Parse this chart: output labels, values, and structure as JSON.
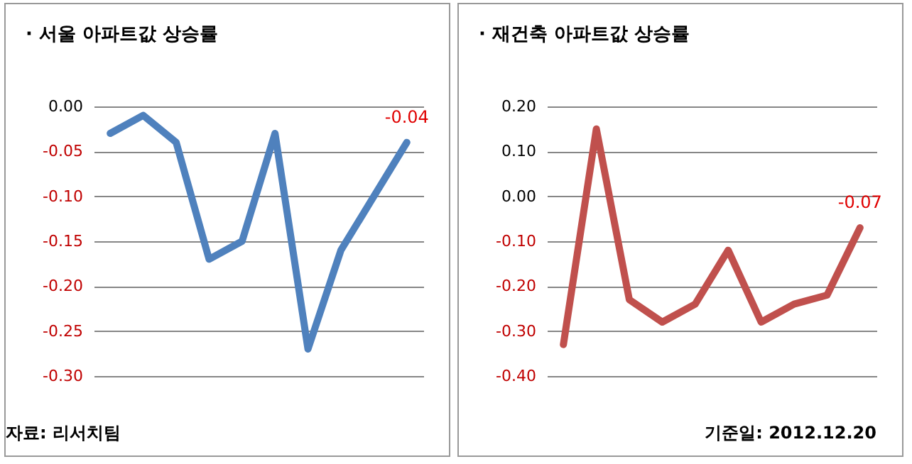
{
  "chart_data": [
    {
      "type": "line",
      "title": "· 서울 아파트값 상승률",
      "categories": [
        null,
        null,
        null,
        null,
        null,
        null,
        null,
        null,
        null,
        null
      ],
      "series": [
        {
          "color": "#4f81bd",
          "values": [
            -0.03,
            -0.01,
            -0.04,
            -0.17,
            -0.15,
            -0.03,
            -0.27,
            -0.16,
            -0.1,
            -0.04
          ],
          "value_labels": [
            null,
            null,
            null,
            null,
            null,
            null,
            null,
            null,
            null,
            "-0.04"
          ]
        }
      ],
      "ylim": [
        -0.3,
        0.0
      ],
      "yticks": [
        {
          "value": 0,
          "label": "0.00"
        },
        {
          "value": -0.05,
          "label": "-0.05"
        },
        {
          "value": -0.1,
          "label": "-0.10"
        },
        {
          "value": -0.15,
          "label": "-0.15"
        },
        {
          "value": -0.2,
          "label": "-0.20"
        },
        {
          "value": -0.25,
          "label": "-0.25"
        },
        {
          "value": -0.3,
          "label": "-0.30"
        }
      ],
      "grid": "y",
      "marker": "none",
      "tick_labels": "y",
      "annotations": [
        "자료: 리서치팀"
      ]
    },
    {
      "type": "line",
      "title": "· 재건축 아파트값 상승률",
      "categories": [
        null,
        null,
        null,
        null,
        null,
        null,
        null,
        null,
        null,
        null
      ],
      "series": [
        {
          "color": "#c0504d",
          "values": [
            -0.33,
            0.15,
            -0.23,
            -0.28,
            -0.24,
            -0.12,
            -0.28,
            -0.24,
            -0.22,
            -0.07
          ],
          "value_labels": [
            null,
            null,
            null,
            null,
            null,
            null,
            null,
            null,
            null,
            "-0.07"
          ]
        }
      ],
      "ylim": [
        -0.4,
        0.2
      ],
      "yticks": [
        {
          "value": 0.2,
          "label": "0.20"
        },
        {
          "value": 0.1,
          "label": "0.10"
        },
        {
          "value": 0,
          "label": "0.00"
        },
        {
          "value": -0.1,
          "label": "-0.10"
        },
        {
          "value": -0.2,
          "label": "-0.20"
        },
        {
          "value": -0.3,
          "label": "-0.30"
        },
        {
          "value": -0.4,
          "label": "-0.40"
        }
      ],
      "grid": "y",
      "marker": "none",
      "tick_labels": "y",
      "annotations": [
        "기준일: 2012.12.20"
      ]
    }
  ]
}
